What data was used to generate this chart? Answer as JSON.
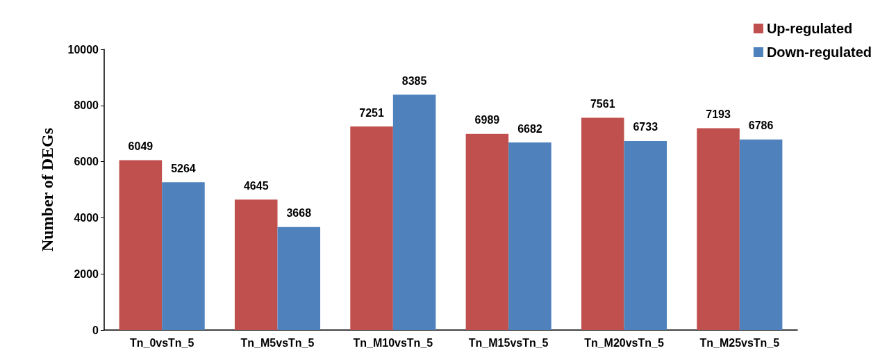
{
  "chart_data": {
    "type": "bar",
    "ylabel": "Number of DEGs",
    "categories": [
      "Tn_0vsTn_5",
      "Tn_M5vsTn_5",
      "Tn_M10vsTn_5",
      "Tn_M15vsTn_5",
      "Tn_M20vsTn_5",
      "Tn_M25vsTn_5"
    ],
    "series": [
      {
        "name": "Up-regulated",
        "color": "#c0504d",
        "values": [
          6049,
          4645,
          7251,
          6989,
          7561,
          7193
        ]
      },
      {
        "name": "Down-regulated",
        "color": "#4f81bd",
        "values": [
          5264,
          3668,
          8385,
          6682,
          6733,
          6786
        ]
      }
    ],
    "ylim": [
      0,
      10000
    ],
    "yticks": [
      0,
      2000,
      4000,
      6000,
      8000,
      10000
    ],
    "grid": false,
    "legend": "top right",
    "data_labels": true
  }
}
